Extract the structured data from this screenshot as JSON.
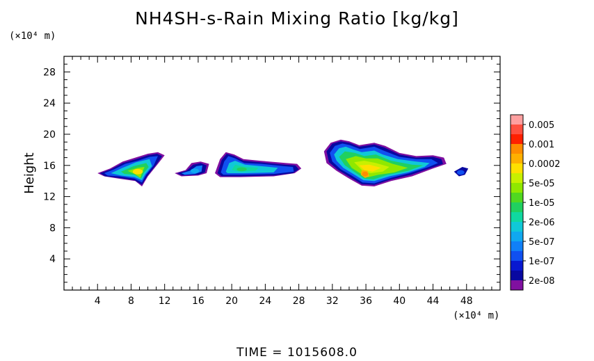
{
  "chart_data": {
    "type": "heatmap",
    "title": "NH4SH-s-Rain Mixing Ratio [kg/kg]",
    "xlabel": "",
    "ylabel": "Height",
    "x_unit": "(×10⁴ m)",
    "y_unit": "(×10⁴ m)",
    "xlim": [
      0,
      52
    ],
    "ylim": [
      0,
      30
    ],
    "x_ticks": [
      4,
      8,
      12,
      16,
      20,
      24,
      28,
      32,
      36,
      40,
      44,
      48
    ],
    "y_ticks": [
      4,
      8,
      12,
      16,
      20,
      24,
      28
    ],
    "colorbar": {
      "labels": [
        "0.005",
        "0.001",
        "0.0002",
        "5e-05",
        "1e-05",
        "2e-06",
        "5e-07",
        "1e-07",
        "2e-08"
      ],
      "colors": [
        "#ffa0a0",
        "#ff5040",
        "#ff2000",
        "#ff8c00",
        "#ffb000",
        "#ffe000",
        "#c8f000",
        "#90e800",
        "#50d820",
        "#20d060",
        "#10d8a0",
        "#10c8d8",
        "#10a8f0",
        "#1080f8",
        "#1050f0",
        "#0818d0",
        "#0808a0",
        "#8010a0"
      ]
    },
    "regions": [
      {
        "x": [
          4,
          12
        ],
        "y": [
          13.5,
          17.6
        ],
        "peak": "5e-05"
      },
      {
        "x": [
          13,
          17.5
        ],
        "y": [
          14.8,
          16.5
        ],
        "peak": "5e-07"
      },
      {
        "x": [
          18,
          28.5
        ],
        "y": [
          14.5,
          17.7
        ],
        "peak": "1e-05"
      },
      {
        "x": [
          31,
          46
        ],
        "y": [
          13.2,
          19.3
        ],
        "peak": "0.0002"
      },
      {
        "x": [
          46.5,
          48
        ],
        "y": [
          14.7,
          16
        ],
        "peak": "1e-07"
      }
    ]
  },
  "footer": {
    "time_label": "TIME = 1015608.0"
  }
}
